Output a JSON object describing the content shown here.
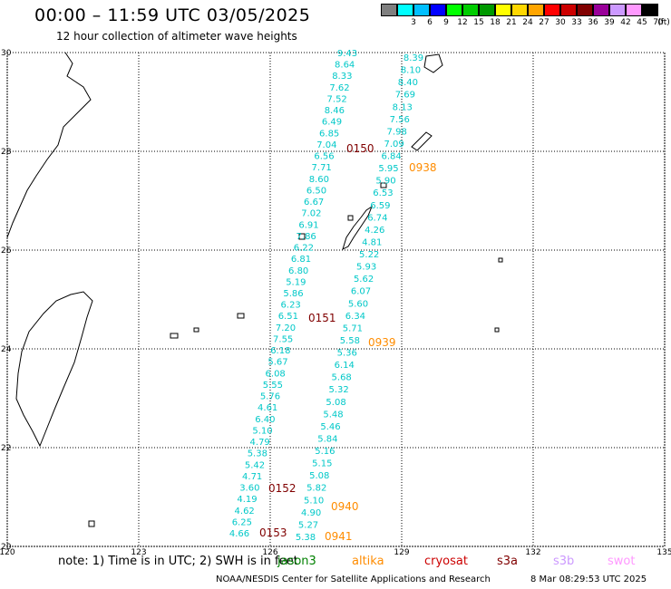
{
  "header": {
    "title": "00:00 – 11:59 UTC 03/05/2025",
    "subtitle": "12 hour collection of altimeter wave heights"
  },
  "legend": {
    "unit": "(ft)",
    "bins": [
      {
        "label": "",
        "color": "#7f7f7f"
      },
      {
        "label": "3",
        "color": "#00ffff"
      },
      {
        "label": "6",
        "color": "#00bfff"
      },
      {
        "label": "9",
        "color": "#0000ff"
      },
      {
        "label": "12",
        "color": "#00ff00"
      },
      {
        "label": "15",
        "color": "#00cc00"
      },
      {
        "label": "18",
        "color": "#009900"
      },
      {
        "label": "21",
        "color": "#ffff00"
      },
      {
        "label": "24",
        "color": "#ffd700"
      },
      {
        "label": "27",
        "color": "#ffa500"
      },
      {
        "label": "30",
        "color": "#ff0000"
      },
      {
        "label": "33",
        "color": "#cc0000"
      },
      {
        "label": "36",
        "color": "#800000"
      },
      {
        "label": "39",
        "color": "#990099"
      },
      {
        "label": "42",
        "color": "#cc99ff"
      },
      {
        "label": "45",
        "color": "#ff99ff"
      },
      {
        "label": "70",
        "color": "#000000"
      }
    ]
  },
  "map": {
    "lon_range": [
      120,
      135
    ],
    "lat_range": [
      20,
      30
    ],
    "lon_ticks": [
      "120",
      "123",
      "126",
      "129",
      "132",
      "135"
    ],
    "lat_ticks": [
      "30",
      "28",
      "26",
      "24",
      "22",
      "20"
    ],
    "grid": true,
    "track_color": "#00c8c8",
    "time_label_colors": {
      "jason": "#800000",
      "altika": "#ff8c00"
    },
    "tracks": [
      {
        "name": "0150",
        "values": [
          "9.43",
          "8.64",
          "8.33",
          "7.62",
          "7.52",
          "8.46",
          "6.49",
          "6.85",
          "7.04",
          "6.56",
          "7.71",
          "8.60",
          "6.50",
          "6.67",
          "7.02",
          "6.91",
          "7.86",
          "6.22",
          "6.81",
          "6.80",
          "5.19",
          "5.86",
          "6.23",
          "6.51",
          "7.20",
          "7.55",
          "6.18",
          "5.67",
          "6.08",
          "5.55",
          "5.76",
          "4.61",
          "6.40",
          "5.10",
          "4.79",
          "5.38",
          "5.42",
          "4.71",
          "3.60",
          "4.19",
          "4.62",
          "6.25",
          "4.66"
        ],
        "time_labels": [
          "0150",
          "0151",
          "0152",
          "0153"
        ]
      },
      {
        "name": "0938",
        "values": [
          "8.39",
          "8.10",
          "8.40",
          "7.69",
          "8.13",
          "7.56",
          "7.98",
          "7.09",
          "6.84",
          "5.95",
          "5.90",
          "6.53",
          "6.59",
          "6.74",
          "4.26",
          "4.81",
          "5.22",
          "5.93",
          "5.62",
          "6.07",
          "5.60",
          "6.34",
          "5.71",
          "5.58",
          "5.36",
          "6.14",
          "5.68",
          "5.32",
          "5.08",
          "5.48",
          "5.46",
          "5.84",
          "5.16",
          "5.15",
          "5.08",
          "5.82",
          "5.10",
          "4.90",
          "5.27",
          "5.38"
        ],
        "time_labels": [
          "0938",
          "0939",
          "0940",
          "0941"
        ]
      }
    ]
  },
  "footer": {
    "note": "note: 1) Time is in UTC; 2) SWH is in feet",
    "satellites": [
      {
        "name": "jason3",
        "color": "#008000"
      },
      {
        "name": "altika",
        "color": "#ff8c00"
      },
      {
        "name": "cryosat",
        "color": "#cc0000"
      },
      {
        "name": "s3a",
        "color": "#800000"
      },
      {
        "name": "s3b",
        "color": "#cc99ff"
      },
      {
        "name": "swot",
        "color": "#ff99ff"
      }
    ],
    "credit": "NOAA/NESDIS Center for Satellite Applications and Research",
    "generated": "8 Mar 08:29:53 UTC 2025"
  }
}
